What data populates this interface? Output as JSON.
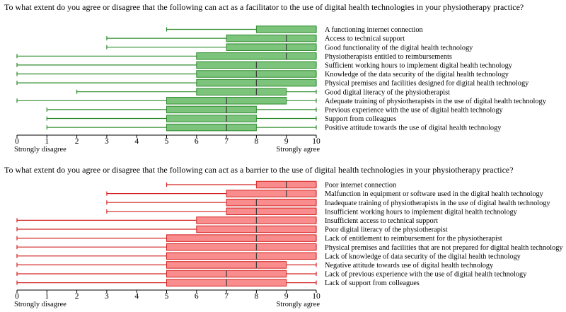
{
  "chart_data": [
    {
      "type": "boxplot",
      "title": "To what extent do you agree or disagree that the following can act as a facilitator to the use of digital health technologies in your physiotherapy practice?",
      "xlim": [
        0,
        10
      ],
      "xticks": [
        "0",
        "1",
        "2",
        "3",
        "4",
        "5",
        "6",
        "7",
        "8",
        "9",
        "10"
      ],
      "scale_left_label": "Strongly disagree",
      "scale_right_label": "Strongly agree",
      "colors": {
        "box_fill": "#7cc47c",
        "stroke": "#2e8b2e"
      },
      "items": [
        {
          "label": "A functioning internet connection",
          "min": 5,
          "q1": 8,
          "median": 10,
          "q3": 10,
          "max": 10
        },
        {
          "label": "Access to technical support",
          "min": 3,
          "q1": 7,
          "median": 9,
          "q3": 10,
          "max": 10
        },
        {
          "label": "Good functionality of the digital health technology",
          "min": 3,
          "q1": 7,
          "median": 9,
          "q3": 10,
          "max": 10
        },
        {
          "label": "Physiotherapists entitled to reimbursements",
          "min": 0,
          "q1": 6,
          "median": 9,
          "q3": 10,
          "max": 10
        },
        {
          "label": "Sufficient working hours to implement digital health technology",
          "min": 0,
          "q1": 6,
          "median": 8,
          "q3": 10,
          "max": 10
        },
        {
          "label": "Knowledge of the data security of the digital health technology",
          "min": 0,
          "q1": 6,
          "median": 8,
          "q3": 10,
          "max": 10
        },
        {
          "label": "Physical premises and facilities designed for digital health technology",
          "min": 0,
          "q1": 6,
          "median": 8,
          "q3": 10,
          "max": 10
        },
        {
          "label": "Good digital literacy of the physiotherapist",
          "min": 2,
          "q1": 6,
          "median": 8,
          "q3": 9,
          "max": 10
        },
        {
          "label": "Adequate training of physiotherapists in the use of digital health technology",
          "min": 0,
          "q1": 5,
          "median": 7,
          "q3": 9,
          "max": 10
        },
        {
          "label": "Previous experience with the use of digital health technology",
          "min": 1,
          "q1": 5,
          "median": 7,
          "q3": 8,
          "max": 10
        },
        {
          "label": "Support from colleagues",
          "min": 1,
          "q1": 5,
          "median": 7,
          "q3": 8,
          "max": 10
        },
        {
          "label": "Positive attitude towards the use of digital health technology",
          "min": 1,
          "q1": 5,
          "median": 7,
          "q3": 8,
          "max": 10
        }
      ]
    },
    {
      "type": "boxplot",
      "title": "To what extent do you agree or disagree that the following can act as a barrier to the use of digital health technologies in your physiotherapy practice?",
      "xlim": [
        0,
        10
      ],
      "xticks": [
        "0",
        "1",
        "2",
        "3",
        "4",
        "5",
        "6",
        "7",
        "8",
        "9",
        "10"
      ],
      "scale_left_label": "Strongly disagree",
      "scale_right_label": "Strongly agree",
      "colors": {
        "box_fill": "#f98c8c",
        "stroke": "#d42424"
      },
      "items": [
        {
          "label": "Poor internet connection",
          "min": 5,
          "q1": 8,
          "median": 9,
          "q3": 10,
          "max": 10
        },
        {
          "label": "Malfunction in equipment or software used in the digital health technology",
          "min": 3,
          "q1": 7,
          "median": 9,
          "q3": 10,
          "max": 10
        },
        {
          "label": "Inadequate training of physiotherapists in the use of digital health technology",
          "min": 3,
          "q1": 7,
          "median": 8,
          "q3": 10,
          "max": 10
        },
        {
          "label": "Insufficient working hours to implement digital health technology",
          "min": 3,
          "q1": 7,
          "median": 8,
          "q3": 10,
          "max": 10
        },
        {
          "label": "Insufficient access to technical support",
          "min": 0,
          "q1": 6,
          "median": 8,
          "q3": 10,
          "max": 10
        },
        {
          "label": "Poor digital literacy of the physiotherapist",
          "min": 0,
          "q1": 6,
          "median": 8,
          "q3": 10,
          "max": 10
        },
        {
          "label": "Lack of entitlement to reimbursement for the physiotherapist",
          "min": 0,
          "q1": 5,
          "median": 8,
          "q3": 10,
          "max": 10
        },
        {
          "label": "Physical premises and facilities that are not prepared for digital health technology",
          "min": 0,
          "q1": 5,
          "median": 8,
          "q3": 10,
          "max": 10
        },
        {
          "label": "Lack of knowledge of data security of the digital health technology",
          "min": 0,
          "q1": 5,
          "median": 8,
          "q3": 10,
          "max": 10
        },
        {
          "label": "Negative attitude towards use of digital health technology",
          "min": 0,
          "q1": 5,
          "median": 8,
          "q3": 9,
          "max": 10
        },
        {
          "label": "Lack of previous experience with the use of digital health technology",
          "min": 0,
          "q1": 5,
          "median": 7,
          "q3": 9,
          "max": 10
        },
        {
          "label": "Lack of support from colleagues",
          "min": 0,
          "q1": 5,
          "median": 7,
          "q3": 9,
          "max": 10
        }
      ]
    }
  ]
}
